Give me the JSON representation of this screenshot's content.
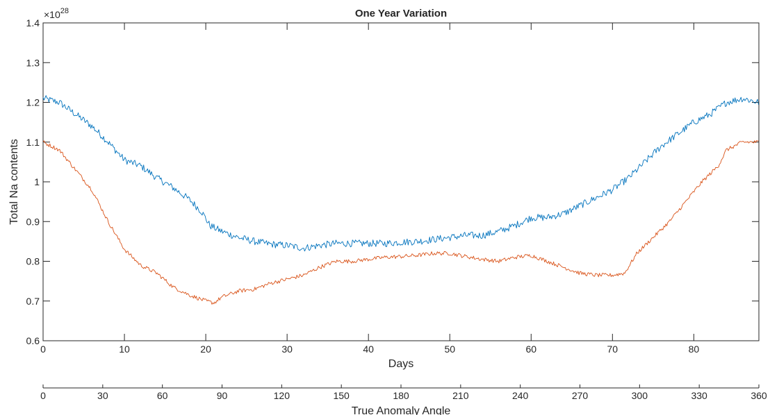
{
  "chart_data": {
    "type": "line",
    "title": "One Year Variation",
    "xlabel": "Days",
    "ylabel": "Total Na contents",
    "y_exponent_base": "×10",
    "y_exponent_power": "28",
    "xlim": [
      0,
      88
    ],
    "ylim": [
      0.6,
      1.4
    ],
    "x_ticks": [
      0,
      10,
      20,
      30,
      40,
      50,
      60,
      70,
      80
    ],
    "x_tick_labels": [
      "0",
      "10",
      "20",
      "30",
      "40",
      "50",
      "60",
      "70",
      "80"
    ],
    "y_ticks": [
      0.6,
      0.7,
      0.8,
      0.9,
      1.0,
      1.1,
      1.2,
      1.3,
      1.4
    ],
    "y_tick_labels": [
      "0.6",
      "0.7",
      "0.8",
      "0.9",
      "1",
      "1.1",
      "1.2",
      "1.3",
      "1.4"
    ],
    "grid": false,
    "legend": "none",
    "secondary_x_axis": {
      "label": "True Anomaly Angle",
      "lim": [
        0,
        360
      ],
      "ticks": [
        0,
        30,
        60,
        90,
        120,
        150,
        180,
        210,
        240,
        270,
        300,
        330,
        360
      ],
      "tick_labels": [
        "0",
        "30",
        "60",
        "90",
        "120",
        "150",
        "180",
        "210",
        "240",
        "270",
        "300",
        "330",
        "360"
      ]
    },
    "series": [
      {
        "color": "#0072bd",
        "x": [
          0,
          2,
          4,
          6,
          8,
          10,
          12,
          14,
          16,
          18,
          19.5,
          20.5,
          22,
          24,
          26,
          28,
          30,
          32,
          34,
          36,
          38,
          40,
          42,
          44,
          46,
          48,
          50,
          52,
          54,
          56,
          58,
          60,
          62,
          64,
          66,
          68,
          70,
          72,
          74,
          76,
          78,
          80,
          82,
          84,
          86,
          88
        ],
        "y": [
          1.21,
          1.2,
          1.17,
          1.14,
          1.1,
          1.055,
          1.04,
          1.01,
          0.985,
          0.955,
          0.925,
          0.89,
          0.875,
          0.86,
          0.85,
          0.843,
          0.84,
          0.833,
          0.84,
          0.845,
          0.845,
          0.845,
          0.845,
          0.848,
          0.85,
          0.855,
          0.86,
          0.865,
          0.865,
          0.875,
          0.89,
          0.91,
          0.91,
          0.92,
          0.94,
          0.96,
          0.98,
          1.01,
          1.05,
          1.09,
          1.12,
          1.15,
          1.17,
          1.2,
          1.21,
          1.2
        ]
      },
      {
        "color": "#d95319",
        "x": [
          0,
          2,
          4,
          6,
          8,
          10,
          12,
          14,
          16,
          18,
          20,
          21,
          22,
          24,
          26,
          28,
          30,
          32,
          34,
          36,
          38,
          40,
          42,
          44,
          46,
          48,
          50,
          52,
          54,
          56,
          58,
          60,
          62,
          64,
          66,
          68,
          70,
          71.5,
          73,
          75,
          77,
          79,
          81,
          83,
          84,
          86,
          88
        ],
        "y": [
          1.1,
          1.08,
          1.03,
          0.98,
          0.9,
          0.83,
          0.79,
          0.77,
          0.735,
          0.715,
          0.7,
          0.695,
          0.71,
          0.725,
          0.73,
          0.745,
          0.755,
          0.765,
          0.785,
          0.8,
          0.8,
          0.805,
          0.81,
          0.812,
          0.815,
          0.82,
          0.82,
          0.812,
          0.805,
          0.8,
          0.81,
          0.815,
          0.8,
          0.785,
          0.77,
          0.765,
          0.765,
          0.77,
          0.82,
          0.86,
          0.9,
          0.95,
          1.0,
          1.04,
          1.08,
          1.1,
          1.1
        ]
      }
    ]
  }
}
